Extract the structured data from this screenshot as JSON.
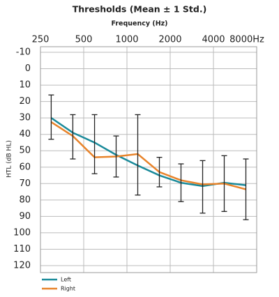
{
  "chart_data": {
    "type": "line",
    "title": "Thresholds (Mean ± 1 Std.)",
    "xlabel": "Frequency (Hz)",
    "ylabel": "HTL (dB HL)",
    "log_x": true,
    "y_inverted": true,
    "grid": true,
    "xlim": [
      250,
      8000
    ],
    "xticks": [
      250,
      500,
      1000,
      2000,
      4000,
      {
        "value": 8000,
        "label": "8000Hz"
      }
    ],
    "ylim": [
      -10,
      120
    ],
    "yticks": [
      -10,
      0,
      10,
      20,
      30,
      40,
      50,
      60,
      70,
      80,
      90,
      100,
      110,
      120
    ],
    "x": [
      297,
      420,
      595,
      841,
      1189,
      1682,
      2378,
      3364,
      4757,
      6727
    ],
    "series": [
      {
        "name": "Left",
        "color": "#1a8a9a",
        "values": [
          30,
          39,
          45,
          52.5,
          59,
          65,
          69.5,
          71.5,
          69.5,
          71
        ]
      },
      {
        "name": "Right",
        "color": "#e8832a",
        "values": [
          32.5,
          41,
          54,
          53.5,
          52,
          63,
          68,
          70.5,
          70,
          73.5
        ]
      }
    ],
    "std_range": {
      "color": "#222222",
      "low": [
        16,
        28,
        28,
        41,
        28,
        54,
        58,
        56,
        53,
        55
      ],
      "high": [
        43,
        55,
        64,
        66,
        77,
        72,
        81,
        88,
        87,
        92
      ]
    },
    "legend": "bottom-left"
  }
}
